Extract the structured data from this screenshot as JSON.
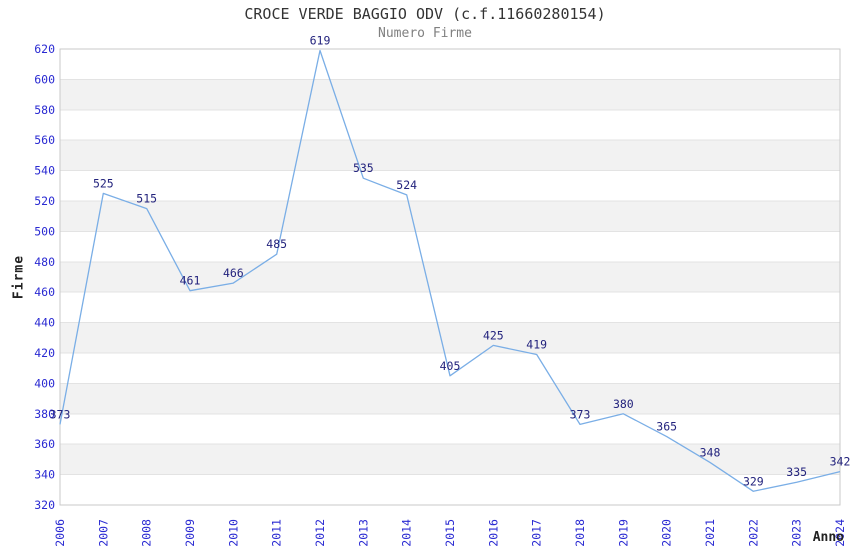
{
  "chart_data": {
    "type": "line",
    "title": "CROCE VERDE BAGGIO ODV (c.f.11660280154)",
    "subtitle": "Numero Firme",
    "xlabel": "Anno",
    "ylabel": "Firme",
    "categories": [
      "2006",
      "2007",
      "2008",
      "2009",
      "2010",
      "2011",
      "2012",
      "2013",
      "2014",
      "2015",
      "2016",
      "2017",
      "2018",
      "2019",
      "2020",
      "2021",
      "2022",
      "2023",
      "2024"
    ],
    "values": [
      373,
      525,
      515,
      461,
      466,
      485,
      619,
      535,
      524,
      405,
      425,
      419,
      373,
      380,
      365,
      348,
      329,
      335,
      342
    ],
    "ylim": [
      320,
      620
    ],
    "ytick_step": 20,
    "yticks": [
      320,
      340,
      360,
      380,
      400,
      420,
      440,
      460,
      480,
      500,
      520,
      540,
      560,
      580,
      600,
      620
    ],
    "grid": "horizontal",
    "banding": "alternating-horizontal",
    "legend": "none",
    "point_labels_shown": true,
    "colors": {
      "line": "#7aaee6",
      "tick_labels": "#2a2ad2",
      "point_labels": "#23237d",
      "title": "#333333",
      "subtitle": "#808080",
      "axis_titles": "#222222",
      "band": "#f2f2f2",
      "gridline": "#e3e3e3",
      "border": "#c9c9c9",
      "background": "#ffffff"
    }
  }
}
